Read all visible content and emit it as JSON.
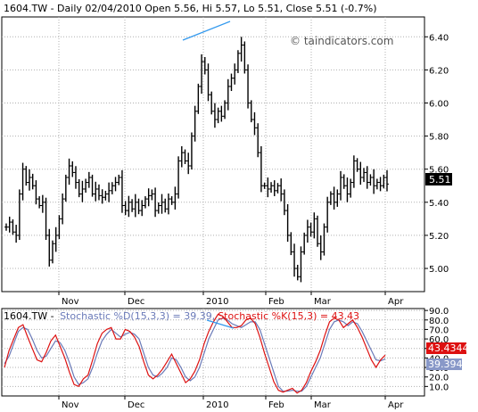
{
  "header": {
    "price_title": "1604.TW - Daily 02/04/2010 Open 5.56, Hi 5.57, Lo 5.51, Close 5.51 (-0.7%)",
    "watermark": "© taindicators.com",
    "stoch_symbol": "1604.TW - ",
    "stoch_d_label": "Stochastic %D(15,3,3) = 39.39,",
    "stoch_k_label": "Stochastic %K(15,3) = 43.43"
  },
  "colors": {
    "candle": "#000000",
    "trendline": "#3399ee",
    "stoch_d": "#6a7ab8",
    "stoch_k": "#dd1111",
    "badge_k": "#dd1111",
    "badge_d": "#8898c8"
  },
  "chart_data": [
    {
      "type": "ohlc",
      "title": "1604.TW - Daily 02/04/2010 Open 5.56, Hi 5.57, Lo 5.51, Close 5.51 (-0.7%)",
      "x_ticks": [
        "Nov",
        "Dec",
        "2010",
        "Feb",
        "Mar",
        "Apr"
      ],
      "y_ticks": [
        "6.40",
        "6.20",
        "6.00",
        "5.80",
        "5.60",
        "5.40",
        "5.20",
        "5.00"
      ],
      "ylim": [
        4.86,
        6.52
      ],
      "last_price_label": "5.51",
      "close_series": [
        5.25,
        5.28,
        5.22,
        5.2,
        5.45,
        5.6,
        5.52,
        5.55,
        5.5,
        5.42,
        5.38,
        5.4,
        5.2,
        5.05,
        5.15,
        5.2,
        5.3,
        5.42,
        5.55,
        5.62,
        5.58,
        5.52,
        5.45,
        5.48,
        5.52,
        5.55,
        5.45,
        5.48,
        5.44,
        5.43,
        5.45,
        5.47,
        5.5,
        5.52,
        5.55,
        5.38,
        5.35,
        5.4,
        5.36,
        5.4,
        5.35,
        5.38,
        5.42,
        5.44,
        5.45,
        5.35,
        5.38,
        5.4,
        5.36,
        5.42,
        5.4,
        5.45,
        5.65,
        5.7,
        5.65,
        5.62,
        5.8,
        5.95,
        6.1,
        6.25,
        6.2,
        6.05,
        5.95,
        5.9,
        5.95,
        5.92,
        6.0,
        6.1,
        6.15,
        6.2,
        6.3,
        6.35,
        6.2,
        6.0,
        5.9,
        5.85,
        5.7,
        5.5,
        5.5,
        5.48,
        5.5,
        5.47,
        5.5,
        5.45,
        5.35,
        5.2,
        5.1,
        5.0,
        4.95,
        5.1,
        5.2,
        5.25,
        5.22,
        5.3,
        5.15,
        5.1,
        5.25,
        5.4,
        5.45,
        5.4,
        5.45,
        5.55,
        5.5,
        5.45,
        5.52,
        5.65,
        5.6,
        5.55,
        5.58,
        5.52,
        5.55,
        5.5,
        5.52,
        5.5,
        5.55,
        5.51
      ],
      "annotation": "blue trendline connecting the December and January highs"
    },
    {
      "type": "line",
      "title": "Stochastic %D(15,3,3) = 39.39, Stochastic %K(15,3) = 43.43",
      "x_ticks": [
        "Nov",
        "Dec",
        "2010",
        "Feb",
        "Mar",
        "Apr"
      ],
      "y_ticks": [
        "90.0",
        "80.0",
        "70.0",
        "60.0",
        "50.0",
        "40.0",
        "30.0",
        "20.0",
        "10.0"
      ],
      "ylim": [
        0,
        92
      ],
      "series": [
        {
          "name": "Stochastic %D(15,3,3)",
          "last_label": "39.394",
          "values": [
            34,
            42,
            55,
            68,
            72,
            70,
            60,
            48,
            40,
            42,
            50,
            58,
            56,
            48,
            35,
            20,
            12,
            14,
            18,
            30,
            45,
            58,
            65,
            70,
            66,
            62,
            65,
            67,
            65,
            60,
            45,
            30,
            22,
            20,
            24,
            30,
            40,
            38,
            30,
            20,
            16,
            20,
            30,
            45,
            60,
            70,
            80,
            82,
            80,
            76,
            74,
            72,
            75,
            78,
            78,
            70,
            55,
            40,
            25,
            10,
            5,
            5,
            6,
            5,
            5,
            10,
            20,
            30,
            40,
            55,
            70,
            78,
            80,
            78,
            74,
            78,
            76,
            68,
            58,
            48,
            38,
            37,
            39
          ]
        },
        {
          "name": "Stochastic %K(15,3)",
          "last_label": "43.4344",
          "values": [
            30,
            48,
            60,
            72,
            75,
            62,
            50,
            38,
            36,
            46,
            58,
            64,
            52,
            40,
            25,
            12,
            10,
            18,
            22,
            38,
            55,
            66,
            70,
            72,
            60,
            60,
            70,
            68,
            62,
            52,
            36,
            22,
            18,
            22,
            28,
            36,
            44,
            34,
            24,
            14,
            18,
            26,
            38,
            55,
            68,
            78,
            86,
            84,
            78,
            72,
            72,
            74,
            80,
            82,
            76,
            62,
            45,
            30,
            15,
            6,
            4,
            6,
            8,
            3,
            6,
            14,
            26,
            36,
            48,
            64,
            78,
            82,
            80,
            72,
            76,
            80,
            72,
            62,
            50,
            38,
            30,
            38,
            43
          ]
        }
      ]
    }
  ]
}
